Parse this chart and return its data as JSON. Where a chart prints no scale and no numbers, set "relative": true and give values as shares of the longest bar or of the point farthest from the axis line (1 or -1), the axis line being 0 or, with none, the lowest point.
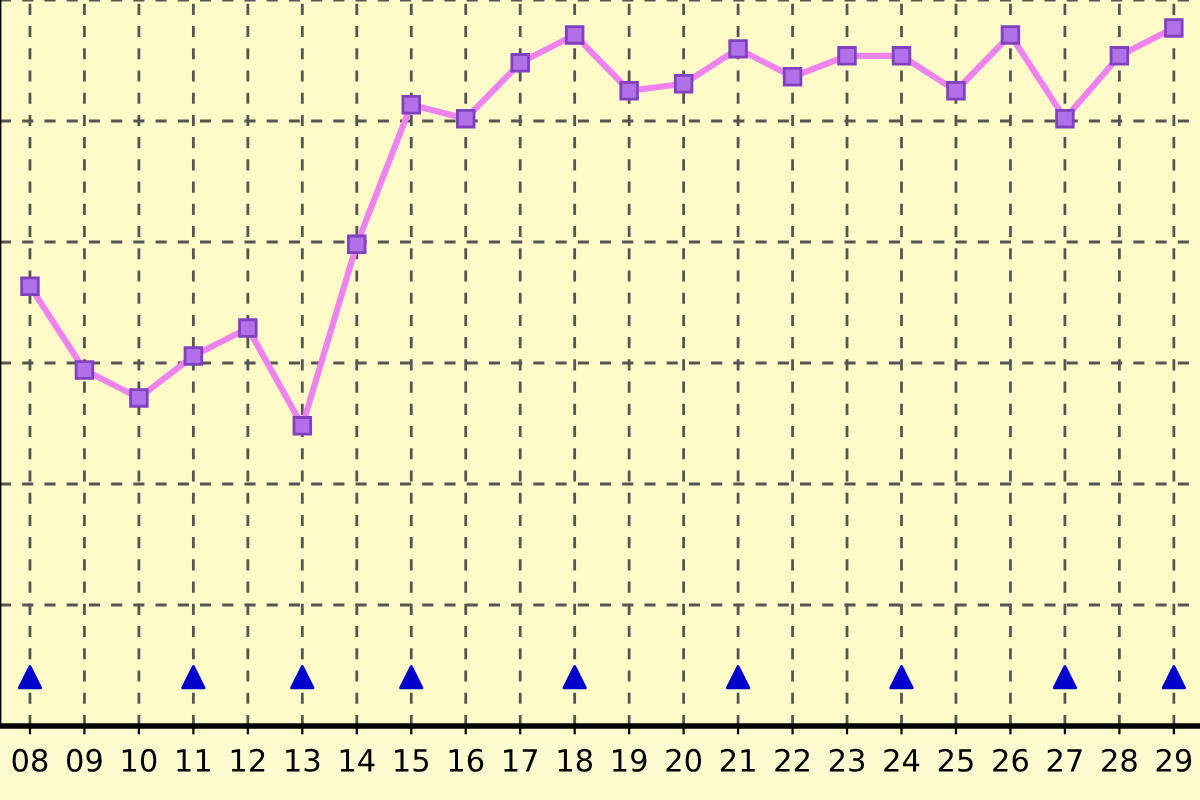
{
  "chart_data": {
    "type": "line",
    "relative": true,
    "categories": [
      "08",
      "09",
      "10",
      "11",
      "12",
      "13",
      "14",
      "15",
      "16",
      "17",
      "18",
      "19",
      "20",
      "21",
      "22",
      "23",
      "24",
      "25",
      "26",
      "27",
      "28",
      "29"
    ],
    "series": [
      {
        "color": "#ee82ee",
        "marker": "square",
        "values": [
          0.63,
          0.51,
          0.47,
          0.53,
          0.57,
          0.43,
          0.69,
          0.89,
          0.87,
          0.95,
          0.99,
          0.91,
          0.92,
          0.97,
          0.93,
          0.96,
          0.96,
          0.91,
          0.99,
          0.87,
          0.96,
          1
        ]
      },
      {
        "type": "scatter",
        "color": "#0000cc",
        "marker": "triangle",
        "x": [
          "08",
          "11",
          "13",
          "15",
          "18",
          "21",
          "24",
          "27",
          "29"
        ],
        "values": [
          0.07,
          0.07,
          0.07,
          0.07,
          0.07,
          0.07,
          0.07,
          0.07,
          0.07
        ]
      }
    ],
    "grid": true,
    "tick_labels": "x",
    "legend": false
  }
}
